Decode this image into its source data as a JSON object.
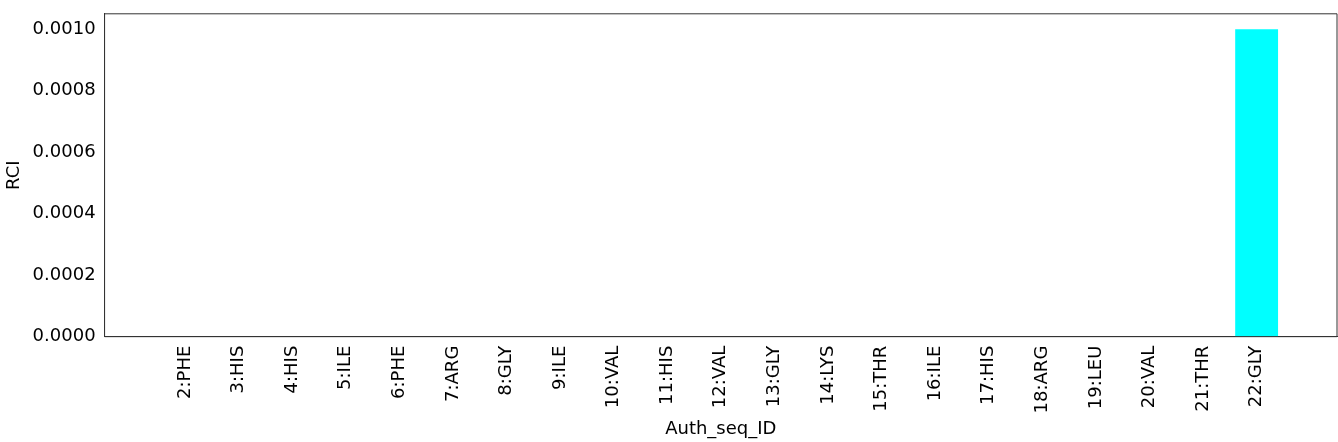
{
  "chart_data": {
    "type": "bar",
    "xlabel": "Auth_seq_ID",
    "ylabel": "RCI",
    "categories": [
      null,
      "2:PHE",
      "3:HIS",
      "4:HIS",
      "5:ILE",
      "6:PHE",
      "7:ARG",
      "8:GLY",
      "9:ILE",
      "10:VAL",
      "11:HIS",
      "12:VAL",
      "13:GLY",
      "14:LYS",
      "15:THR",
      "16:ILE",
      "17:HIS",
      "18:ARG",
      "19:LEU",
      "20:VAL",
      "21:THR",
      "22:GLY",
      null
    ],
    "values": [
      null,
      0,
      0,
      0,
      0,
      0,
      0,
      0,
      0,
      0,
      0,
      0,
      0,
      0,
      0,
      0,
      0,
      0,
      0,
      0,
      0,
      0.001,
      null
    ],
    "colors": [
      "#000000",
      "#008b8b",
      "#008b8b",
      "#008b8b",
      "#008b8b",
      "#000000",
      "#000000",
      "#000000",
      "#000000",
      "#000000",
      "#000000",
      "#000000",
      "#000000",
      "#000000",
      "#000000",
      "#000000",
      "#000000",
      "#000000",
      "#000000",
      "#000000",
      "#000000",
      "#00ffff",
      "#000000"
    ],
    "ylim": [
      0,
      0.00105
    ],
    "yticks": [
      {
        "value": 0,
        "label": "0.0000"
      },
      {
        "value": 0.0002,
        "label": "0.0002"
      },
      {
        "value": 0.0004,
        "label": "0.0004"
      },
      {
        "value": 0.0006,
        "label": "0.0006"
      },
      {
        "value": 0.0008,
        "label": "0.0008"
      },
      {
        "value": 0.001,
        "label": "0.0010"
      }
    ],
    "grid": false,
    "legend": false
  }
}
